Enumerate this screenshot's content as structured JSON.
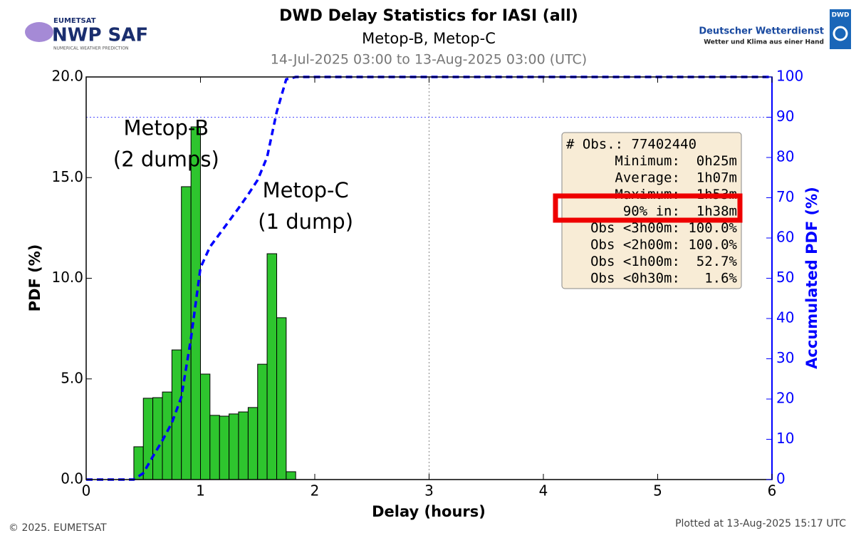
{
  "header": {
    "left_logo": {
      "org": "EUMETSAT",
      "name": "NWP SAF",
      "tagline": "NUMERICAL WEATHER PREDICTION"
    },
    "right_logo": {
      "name": "Deutscher Wetterdienst",
      "tagline": "Wetter und Klima aus einer Hand",
      "badge": "DWD"
    }
  },
  "chart_data": {
    "type": "histogram",
    "title": "DWD Delay Statistics for IASI (all)",
    "subtitle": "Metop-B, Metop-C",
    "period": "14-Jul-2025 03:00 to 13-Aug-2025 03:00 (UTC)",
    "xlabel": "Delay (hours)",
    "ylabel": "PDF (%)",
    "y2label": "Accumulated PDF (%)",
    "xlim": [
      0,
      6
    ],
    "xticks": [
      0,
      1,
      2,
      3,
      4,
      5,
      6
    ],
    "ylim": [
      0,
      20
    ],
    "yticks": [
      {
        "value": 0,
        "label": "0.0"
      },
      {
        "value": 5,
        "label": "5.0"
      },
      {
        "value": 10,
        "label": "10.0"
      },
      {
        "value": 15,
        "label": "15.0"
      },
      {
        "value": 20,
        "label": "20.0"
      }
    ],
    "y2lim": [
      0,
      100
    ],
    "y2ticks": [
      0,
      10,
      20,
      30,
      40,
      50,
      60,
      70,
      80,
      90,
      100
    ],
    "histogram": {
      "color": "#2ec52e",
      "bins": [
        0.417,
        0.5,
        0.583,
        0.667,
        0.75,
        0.833,
        0.917,
        1.0,
        1.083,
        1.167,
        1.25,
        1.333,
        1.417,
        1.5,
        1.583,
        1.667,
        1.75,
        1.833
      ],
      "values": [
        1.63,
        4.04,
        4.07,
        4.35,
        6.44,
        14.55,
        17.52,
        5.24,
        3.19,
        3.15,
        3.26,
        3.36,
        3.58,
        5.73,
        11.22,
        8.04,
        0.39
      ]
    },
    "cumulative": {
      "color": "#0000ff",
      "axis": "y2",
      "x": [
        0,
        0.417,
        0.5,
        0.583,
        0.667,
        0.75,
        0.833,
        0.917,
        1.0,
        1.083,
        1.167,
        1.25,
        1.333,
        1.417,
        1.5,
        1.583,
        1.667,
        1.75,
        1.833,
        6
      ],
      "values": [
        0,
        0,
        1.6,
        5.7,
        9.7,
        14.1,
        20.5,
        35.1,
        52.6,
        57.8,
        61.0,
        64.2,
        67.4,
        70.8,
        74.4,
        80.1,
        91.3,
        99.4,
        100,
        100
      ]
    },
    "reference_lines": [
      {
        "axis": "x",
        "value": 3
      },
      {
        "axis": "y2",
        "value": 90
      }
    ],
    "annotations": [
      {
        "lines": [
          "Metop-B",
          "(2 dumps)"
        ],
        "x": 0.7,
        "y": 17.4
      },
      {
        "lines": [
          "Metop-C",
          "(1 dump)"
        ],
        "x": 1.92,
        "y": 14.3
      }
    ],
    "stats": [
      "# Obs.: 77402440",
      "Minimum:  0h25m",
      "Average:  1h07m",
      "Maximum:  1h53m",
      "90% in:  1h38m",
      "Obs <3h00m: 100.0%",
      "Obs <2h00m: 100.0%",
      "Obs <1h00m:  52.7%",
      "Obs <0h30m:   1.6%"
    ]
  },
  "footer": {
    "copyright": "© 2025. EUMETSAT",
    "plotted": "Plotted at 13-Aug-2025 15:17 UTC"
  }
}
